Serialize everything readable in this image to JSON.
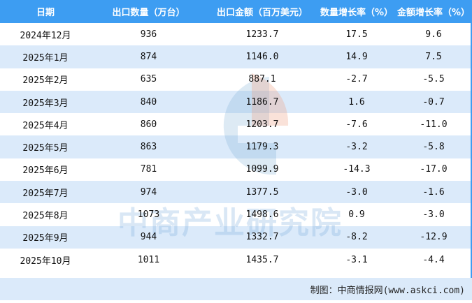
{
  "colors": {
    "header_bg": "#3d9df2",
    "alt_row_bg": "#dbeafa",
    "header_text": "#ffffff"
  },
  "watermark": {
    "text": "中商产业研究院",
    "logo": "askci-logo"
  },
  "chart_data": {
    "type": "table",
    "columns": [
      "日期",
      "出口数量（万台）",
      "出口金额（百万美元）",
      "数量增长率（%）",
      "金额增长率（%）"
    ],
    "rows": [
      [
        "2024年12月",
        "936",
        "1233.7",
        "17.5",
        "9.6"
      ],
      [
        "2025年1月",
        "874",
        "1146.0",
        "14.9",
        "7.5"
      ],
      [
        "2025年2月",
        "635",
        "887.1",
        "-2.7",
        "-5.5"
      ],
      [
        "2025年3月",
        "840",
        "1186.7",
        "1.6",
        "-0.7"
      ],
      [
        "2025年4月",
        "860",
        "1203.7",
        "-7.6",
        "-11.0"
      ],
      [
        "2025年5月",
        "863",
        "1179.3",
        "-3.2",
        "-5.8"
      ],
      [
        "2025年6月",
        "781",
        "1099.9",
        "-14.3",
        "-17.0"
      ],
      [
        "2025年7月",
        "974",
        "1377.5",
        "-3.0",
        "-1.6"
      ],
      [
        "2025年8月",
        "1073",
        "1498.6",
        "0.9",
        "-3.0"
      ],
      [
        "2025年9月",
        "944",
        "1332.7",
        "-8.2",
        "-12.9"
      ],
      [
        "2025年10月",
        "1011",
        "1435.7",
        "-3.1",
        "-4.4"
      ]
    ]
  },
  "footer": {
    "credit": "制图：中商情报网(www.askci.com)"
  }
}
